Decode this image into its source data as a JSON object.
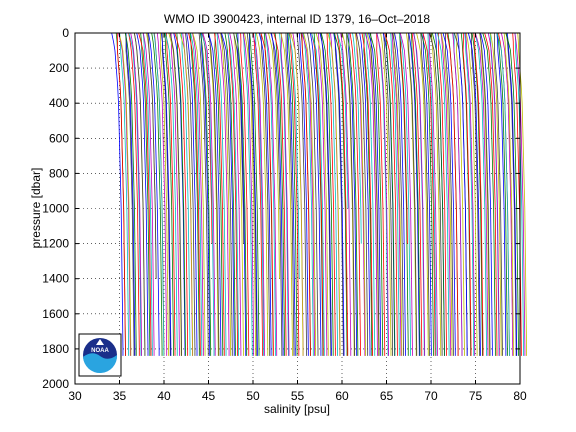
{
  "chart_data": {
    "type": "line",
    "title": "WMO ID 3900423, internal ID 1379, 16–Oct–2018",
    "xlabel": "salinity [psu]",
    "ylabel": "pressure [dbar]",
    "xlim": [
      30,
      80
    ],
    "ylim": [
      0,
      2000
    ],
    "y_reversed": true,
    "x_ticks": [
      30,
      35,
      40,
      45,
      50,
      55,
      60,
      65,
      70,
      75,
      80
    ],
    "y_ticks": [
      0,
      200,
      400,
      600,
      800,
      1000,
      1200,
      1400,
      1600,
      1800,
      2000
    ],
    "grid": "dotted",
    "legend": "none",
    "profile_style": "waterfall of salinity profiles, each offset by roughly 0.2 psu",
    "profiles_approx_count": 230,
    "first_profile_offset_psu": 34.0,
    "offset_step_psu": 0.198,
    "profile_shape": {
      "pressure": [
        0,
        50,
        100,
        200,
        300,
        400,
        600,
        800,
        1000,
        1200,
        1400,
        1600,
        1800,
        1840
      ],
      "salinity_anomaly": [
        0.2,
        0.35,
        0.45,
        0.6,
        0.75,
        0.85,
        0.95,
        1.05,
        1.15,
        1.2,
        1.25,
        1.3,
        1.35,
        1.35
      ]
    },
    "max_pressure": 1840,
    "colors": [
      "#0000ff",
      "#008000",
      "#ff0000",
      "#00bfbf",
      "#bf00bf",
      "#bfbf00",
      "#404040"
    ]
  },
  "logo": {
    "text": "NOAA"
  }
}
